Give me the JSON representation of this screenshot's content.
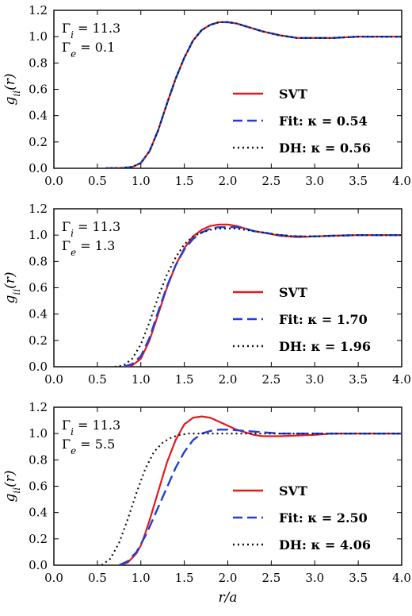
{
  "chart_data": [
    {
      "type": "line",
      "ylabel": "g_ii(r)",
      "xlim": [
        0,
        4
      ],
      "ylim": [
        0,
        1.2
      ],
      "xticks": [
        "0.0",
        "0.5",
        "1.0",
        "1.5",
        "2.0",
        "2.5",
        "3.0",
        "3.5",
        "4.0"
      ],
      "yticks": [
        "0.0",
        "0.2",
        "0.4",
        "0.6",
        "0.8",
        "1.0",
        "1.2"
      ],
      "annotation": [
        "Γi = 11.3",
        "Γe = 0.1"
      ],
      "legend_position": "lower-right",
      "series": [
        {
          "name": "SVT",
          "color": "#e31a1c",
          "dash": "solid",
          "x": [
            0.6,
            0.8,
            0.9,
            1.0,
            1.1,
            1.2,
            1.3,
            1.4,
            1.5,
            1.6,
            1.7,
            1.8,
            1.9,
            2.0,
            2.1,
            2.2,
            2.3,
            2.4,
            2.6,
            2.8,
            3.0,
            3.2,
            3.5,
            3.8,
            4.0
          ],
          "y": [
            0.0,
            0.003,
            0.01,
            0.04,
            0.13,
            0.29,
            0.49,
            0.68,
            0.84,
            0.97,
            1.05,
            1.09,
            1.11,
            1.11,
            1.1,
            1.08,
            1.06,
            1.04,
            1.01,
            0.99,
            0.99,
            0.99,
            1.0,
            1.0,
            1.0
          ]
        },
        {
          "name": "Fit: κ = 0.54",
          "color": "#1f3fd6",
          "dash": "dashed",
          "x": [
            0.6,
            0.8,
            0.9,
            1.0,
            1.1,
            1.2,
            1.3,
            1.4,
            1.5,
            1.6,
            1.7,
            1.8,
            1.9,
            2.0,
            2.1,
            2.2,
            2.3,
            2.4,
            2.6,
            2.8,
            3.0,
            3.2,
            3.5,
            3.8,
            4.0
          ],
          "y": [
            0.0,
            0.003,
            0.01,
            0.04,
            0.13,
            0.29,
            0.49,
            0.68,
            0.84,
            0.97,
            1.05,
            1.09,
            1.11,
            1.11,
            1.1,
            1.08,
            1.06,
            1.04,
            1.01,
            0.99,
            0.99,
            0.99,
            1.0,
            1.0,
            1.0
          ]
        },
        {
          "name": "DH: κ = 0.56",
          "color": "#111111",
          "dash": "dotted",
          "x": [
            0.6,
            0.8,
            0.9,
            1.0,
            1.1,
            1.2,
            1.3,
            1.4,
            1.5,
            1.6,
            1.7,
            1.8,
            1.9,
            2.0,
            2.1,
            2.2,
            2.3,
            2.4,
            2.6,
            2.8,
            3.0,
            3.2,
            3.5,
            3.8,
            4.0
          ],
          "y": [
            0.0,
            0.003,
            0.01,
            0.04,
            0.13,
            0.29,
            0.49,
            0.68,
            0.84,
            0.97,
            1.05,
            1.09,
            1.11,
            1.11,
            1.1,
            1.08,
            1.06,
            1.04,
            1.01,
            0.99,
            0.99,
            0.99,
            1.0,
            1.0,
            1.0
          ]
        }
      ]
    },
    {
      "type": "line",
      "ylabel": "g_ii(r)",
      "xlim": [
        0,
        4
      ],
      "ylim": [
        0,
        1.2
      ],
      "xticks": [
        "0.0",
        "0.5",
        "1.0",
        "1.5",
        "2.0",
        "2.5",
        "3.0",
        "3.5",
        "4.0"
      ],
      "yticks": [
        "0.0",
        "0.2",
        "0.4",
        "0.6",
        "0.8",
        "1.0",
        "1.2"
      ],
      "annotation": [
        "Γi = 11.3",
        "Γe = 1.3"
      ],
      "legend_position": "lower-right",
      "series": [
        {
          "name": "SVT",
          "color": "#e31a1c",
          "dash": "solid",
          "x": [
            0.8,
            0.9,
            1.0,
            1.1,
            1.2,
            1.3,
            1.4,
            1.5,
            1.6,
            1.7,
            1.8,
            1.9,
            2.0,
            2.1,
            2.2,
            2.3,
            2.4,
            2.6,
            2.8,
            3.0,
            3.2,
            3.5,
            3.8,
            4.0
          ],
          "y": [
            0.0,
            0.01,
            0.06,
            0.2,
            0.4,
            0.6,
            0.77,
            0.9,
            0.99,
            1.04,
            1.07,
            1.08,
            1.08,
            1.07,
            1.05,
            1.03,
            1.02,
            0.995,
            0.985,
            0.99,
            0.995,
            1.0,
            1.0,
            1.0
          ]
        },
        {
          "name": "Fit: κ = 1.70",
          "color": "#1f3fd6",
          "dash": "dashed",
          "x": [
            0.8,
            0.9,
            1.0,
            1.1,
            1.2,
            1.3,
            1.4,
            1.5,
            1.6,
            1.7,
            1.8,
            1.9,
            2.0,
            2.1,
            2.2,
            2.3,
            2.4,
            2.6,
            2.8,
            3.0,
            3.2,
            3.5,
            3.8,
            4.0
          ],
          "y": [
            0.0,
            0.02,
            0.08,
            0.22,
            0.42,
            0.61,
            0.77,
            0.89,
            0.97,
            1.02,
            1.05,
            1.06,
            1.06,
            1.06,
            1.05,
            1.03,
            1.02,
            1.0,
            0.99,
            0.99,
            0.995,
            1.0,
            1.0,
            1.0
          ]
        },
        {
          "name": "DH: κ = 1.96",
          "color": "#111111",
          "dash": "dotted",
          "x": [
            0.7,
            0.8,
            0.9,
            1.0,
            1.1,
            1.2,
            1.3,
            1.4,
            1.5,
            1.6,
            1.7,
            1.8,
            1.9,
            2.0,
            2.1,
            2.2,
            2.4,
            2.6,
            2.8,
            3.0,
            3.2,
            3.5,
            3.8,
            4.0
          ],
          "y": [
            0.0,
            0.01,
            0.06,
            0.17,
            0.34,
            0.53,
            0.7,
            0.83,
            0.93,
            0.99,
            1.02,
            1.04,
            1.05,
            1.05,
            1.05,
            1.04,
            1.02,
            1.0,
            0.99,
            0.99,
            0.995,
            1.0,
            1.0,
            1.0
          ]
        }
      ]
    },
    {
      "type": "line",
      "ylabel": "g_ii(r)",
      "xlabel": "r/a",
      "xlim": [
        0,
        4
      ],
      "ylim": [
        0,
        1.2
      ],
      "xticks": [
        "0.0",
        "0.5",
        "1.0",
        "1.5",
        "2.0",
        "2.5",
        "3.0",
        "3.5",
        "4.0"
      ],
      "yticks": [
        "0.0",
        "0.2",
        "0.4",
        "0.6",
        "0.8",
        "1.0",
        "1.2"
      ],
      "annotation": [
        "Γi = 11.3",
        "Γe = 5.5"
      ],
      "legend_position": "lower-right",
      "series": [
        {
          "name": "SVT",
          "color": "#e31a1c",
          "dash": "solid",
          "x": [
            0.75,
            0.85,
            0.95,
            1.0,
            1.05,
            1.1,
            1.2,
            1.3,
            1.4,
            1.5,
            1.6,
            1.7,
            1.8,
            1.9,
            2.0,
            2.1,
            2.2,
            2.3,
            2.4,
            2.5,
            2.6,
            2.8,
            3.0,
            3.2,
            3.5,
            3.8,
            4.0
          ],
          "y": [
            0.0,
            0.02,
            0.09,
            0.15,
            0.24,
            0.34,
            0.56,
            0.78,
            0.95,
            1.07,
            1.12,
            1.13,
            1.12,
            1.09,
            1.06,
            1.03,
            1.01,
            0.99,
            0.98,
            0.98,
            0.98,
            0.985,
            0.99,
            1.0,
            1.0,
            1.0,
            1.0
          ]
        },
        {
          "name": "Fit: κ = 2.50",
          "color": "#1f3fd6",
          "dash": "dashed",
          "x": [
            0.75,
            0.85,
            0.95,
            1.0,
            1.05,
            1.1,
            1.2,
            1.3,
            1.4,
            1.5,
            1.6,
            1.7,
            1.8,
            1.9,
            2.0,
            2.2,
            2.4,
            2.6,
            2.8,
            3.0,
            3.2,
            3.5,
            3.8,
            4.0
          ],
          "y": [
            0.0,
            0.03,
            0.1,
            0.16,
            0.22,
            0.29,
            0.44,
            0.59,
            0.74,
            0.86,
            0.95,
            1.0,
            1.02,
            1.03,
            1.03,
            1.02,
            1.01,
            1.0,
            1.0,
            1.0,
            1.0,
            1.0,
            1.0,
            1.0
          ]
        },
        {
          "name": "DH: κ = 4.06",
          "color": "#111111",
          "dash": "dotted",
          "x": [
            0.55,
            0.65,
            0.75,
            0.85,
            0.95,
            1.05,
            1.15,
            1.25,
            1.35,
            1.45,
            1.55,
            1.7,
            1.9,
            2.2,
            2.6,
            3.0,
            3.5,
            4.0
          ],
          "y": [
            0.0,
            0.05,
            0.17,
            0.35,
            0.55,
            0.73,
            0.86,
            0.93,
            0.97,
            0.99,
            1.0,
            1.0,
            1.0,
            1.0,
            1.0,
            1.0,
            1.0,
            1.0
          ]
        }
      ]
    }
  ]
}
